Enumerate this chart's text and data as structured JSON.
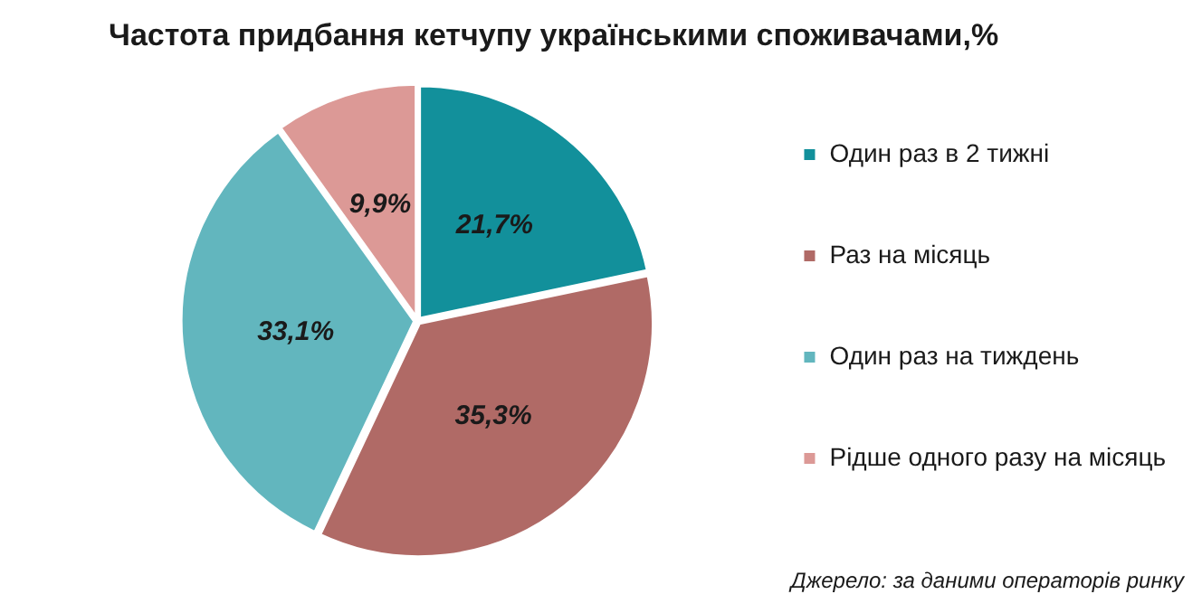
{
  "chart_data": {
    "type": "pie",
    "title": "Частота придбання кетчупу українськими споживачами,%",
    "categories": [
      "Один раз в 2 тижні",
      "Раз на місяць",
      "Один раз на тиждень",
      "Рідше одного разу на місяць"
    ],
    "values": [
      21.7,
      35.3,
      33.1,
      9.9
    ],
    "colors": [
      "#12909b",
      "#b06a66",
      "#62b6be",
      "#dc9996"
    ],
    "value_labels": [
      "21,7%",
      "35,3%",
      "33,1%",
      "9,9%"
    ],
    "legend": "right",
    "annotations": [
      "Джерело: за даними операторів ринку"
    ]
  }
}
